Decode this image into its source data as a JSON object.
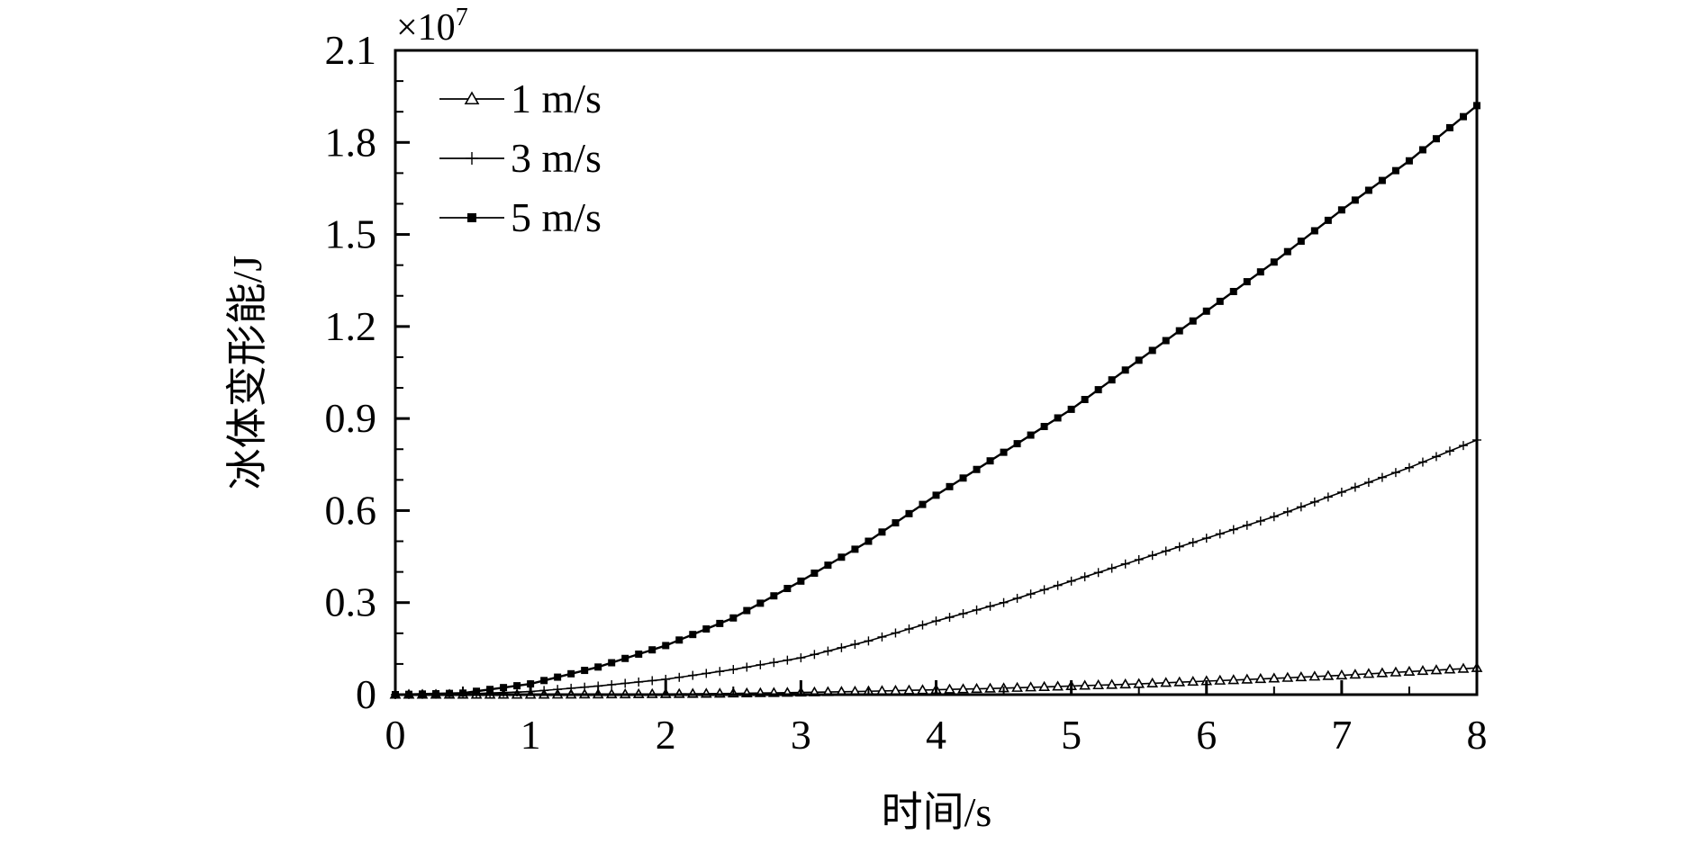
{
  "chart_data": {
    "type": "line",
    "title": "",
    "xlabel": "时间/s",
    "ylabel": "冰体变形能/J",
    "scale_label_base": "×10",
    "scale_label_exp": "7",
    "xlim": [
      0,
      8
    ],
    "ylim": [
      0,
      2.1
    ],
    "xticks": [
      "0",
      "1",
      "2",
      "3",
      "4",
      "5",
      "6",
      "7",
      "8"
    ],
    "yticks": [
      "0",
      "0.3",
      "0.6",
      "0.9",
      "1.2",
      "1.5",
      "1.8",
      "2.1"
    ],
    "legend_position": "top-left",
    "grid": false,
    "series": [
      {
        "name": "1 m/s",
        "marker": "triangle-open",
        "x": [
          0,
          0.5,
          1,
          1.5,
          2,
          2.5,
          3,
          3.5,
          4,
          4.5,
          5,
          5.5,
          6,
          6.5,
          7,
          7.5,
          8
        ],
        "values": [
          0,
          0,
          0,
          0.001,
          0.002,
          0.004,
          0.007,
          0.011,
          0.016,
          0.021,
          0.028,
          0.035,
          0.044,
          0.053,
          0.063,
          0.075,
          0.087
        ]
      },
      {
        "name": "3 m/s",
        "marker": "plus",
        "x": [
          0,
          0.5,
          1,
          1.5,
          2,
          2.5,
          3,
          3.5,
          4,
          4.5,
          5,
          5.5,
          6,
          6.5,
          7,
          7.5,
          8
        ],
        "values": [
          0,
          0.002,
          0.01,
          0.028,
          0.05,
          0.082,
          0.12,
          0.175,
          0.24,
          0.3,
          0.37,
          0.44,
          0.51,
          0.58,
          0.66,
          0.74,
          0.83
        ]
      },
      {
        "name": "5 m/s",
        "marker": "square-filled",
        "x": [
          0,
          0.5,
          1,
          1.5,
          2,
          2.5,
          3,
          3.5,
          4,
          4.5,
          5,
          5.5,
          6,
          6.5,
          7,
          7.5,
          8
        ],
        "values": [
          0,
          0.005,
          0.035,
          0.09,
          0.16,
          0.25,
          0.37,
          0.5,
          0.65,
          0.79,
          0.93,
          1.09,
          1.25,
          1.41,
          1.58,
          1.74,
          1.92
        ]
      }
    ]
  }
}
